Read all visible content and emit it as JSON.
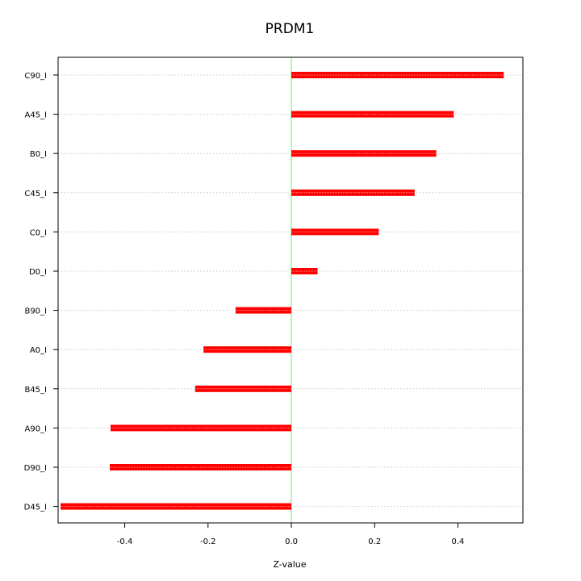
{
  "chart_data": {
    "type": "bar",
    "orientation": "horizontal",
    "title": "PRDM1",
    "xlabel": "Z-value",
    "ylabel": "",
    "xlim": [
      -0.56,
      0.556
    ],
    "x_ticks": [
      -0.4,
      -0.2,
      0.0,
      0.2,
      0.4
    ],
    "x_tick_labels": [
      "-0.4",
      "-0.2",
      "0.0",
      "0.2",
      "0.4"
    ],
    "categories": [
      "C90_I",
      "A45_I",
      "B0_I",
      "C45_I",
      "C0_I",
      "D0_I",
      "B90_I",
      "A0_I",
      "B45_I",
      "A90_I",
      "D90_I",
      "D45_I"
    ],
    "values": [
      0.51,
      0.39,
      0.348,
      0.296,
      0.21,
      0.063,
      -0.134,
      -0.211,
      -0.231,
      -0.434,
      -0.436,
      -0.554
    ],
    "grid": "horizontal dotted",
    "zero_line": true,
    "colors": {
      "bar": "#ff0000",
      "bar_highlight": "#ff9999",
      "zero_line": "#66ee66",
      "grid": "#c8c8c8",
      "frame": "#000000"
    }
  }
}
